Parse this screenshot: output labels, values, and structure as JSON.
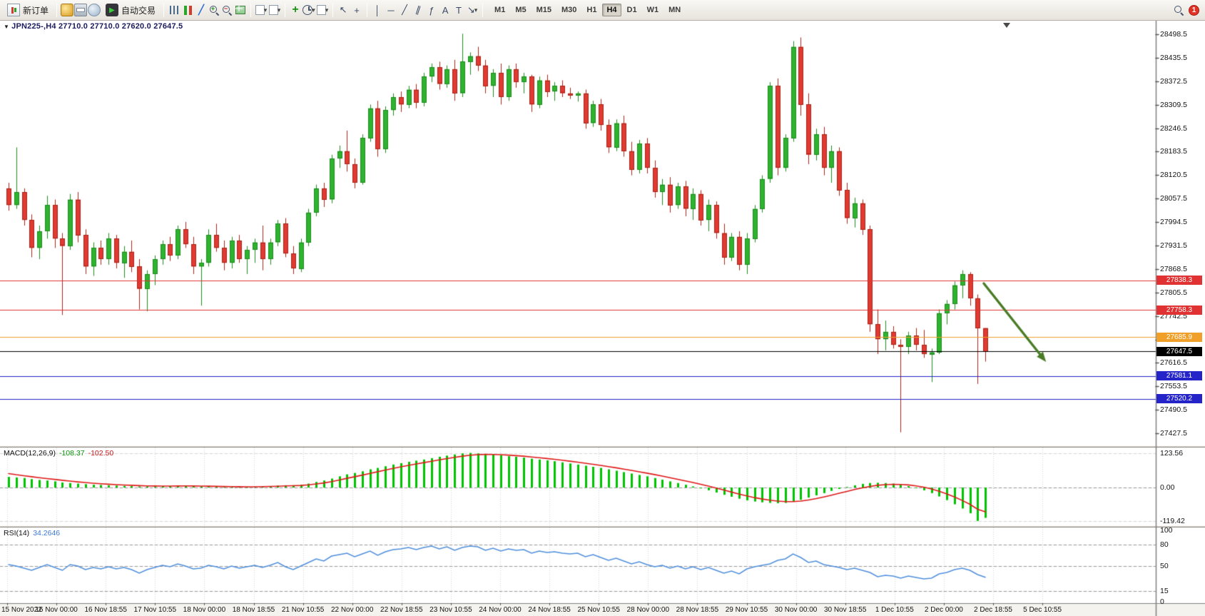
{
  "toolbar": {
    "new_order": "新订单",
    "auto_trading": "自动交易",
    "timeframes": [
      "M1",
      "M5",
      "M15",
      "M30",
      "H1",
      "H4",
      "D1",
      "W1",
      "MN"
    ],
    "active_timeframe": "H4",
    "notification_badge": "1",
    "icon_glyphs": {
      "play": "▶",
      "dropdown": "▾",
      "cursor": "↖",
      "crosshair": "+",
      "vline": "│",
      "hline": "─",
      "trendline": "╱",
      "channel": "∥",
      "fibonacci": "ƒ",
      "text": "A",
      "text_label": "T",
      "arrows": "↘",
      "indicators": "+",
      "linechart": "╱",
      "new_chart": "+"
    },
    "icons": [
      "new-order",
      "market-watch",
      "print",
      "data-window",
      "auto-trading",
      "bar-chart",
      "candlestick-chart",
      "line-chart",
      "zoom-in",
      "zoom-out",
      "tile-windows",
      "new-chart",
      "profiles",
      "indicators",
      "periods",
      "templates",
      "cursor",
      "crosshair",
      "vertical-line",
      "horizontal-line",
      "trendline",
      "channel",
      "fibonacci",
      "text",
      "text-label",
      "arrows",
      "search",
      "notifications"
    ]
  },
  "chart": {
    "symbol_marker": "▼",
    "symbol": "JPN225-,H4",
    "ohlc_line": "27710.0 27710.0 27620.0 27647.5",
    "price_axis_labels": [
      "28498.5",
      "28435.5",
      "28372.5",
      "28309.5",
      "28246.5",
      "28183.5",
      "28120.5",
      "28057.5",
      "27994.5",
      "27931.5",
      "27868.5",
      "27805.5",
      "27742.5",
      "27679.5",
      "27616.5",
      "27553.5",
      "27490.5",
      "27427.5"
    ],
    "time_axis_labels": [
      "15 Nov 2022",
      "16 Nov 00:00",
      "16 Nov 18:55",
      "17 Nov 10:55",
      "18 Nov 00:00",
      "18 Nov 18:55",
      "21 Nov 10:55",
      "22 Nov 00:00",
      "22 Nov 18:55",
      "23 Nov 10:55",
      "24 Nov 00:00",
      "24 Nov 18:55",
      "25 Nov 10:55",
      "28 Nov 00:00",
      "28 Nov 18:55",
      "29 Nov 10:55",
      "30 Nov 00:00",
      "30 Nov 18:55",
      "1 Dec 10:55",
      "2 Dec 00:00",
      "2 Dec 18:55",
      "5 Dec 10:55"
    ],
    "levels": [
      {
        "label": "27838.3",
        "price": 27838.3,
        "color": "#e03232",
        "text_color": "#ffffff"
      },
      {
        "label": "27758.3",
        "price": 27758.3,
        "color": "#e03232",
        "text_color": "#ffffff"
      },
      {
        "label": "27685.9",
        "price": 27685.9,
        "color": "#f0a028",
        "text_color": "#ffffff"
      },
      {
        "label": "27647.5",
        "price": 27647.5,
        "color": "#000000",
        "text_color": "#ffffff",
        "role": "bid-line"
      },
      {
        "label": "27581.1",
        "price": 27581.1,
        "color": "#2424c8",
        "text_color": "#ffffff"
      },
      {
        "label": "27520.2",
        "price": 27520.2,
        "color": "#2424c8",
        "text_color": "#ffffff"
      }
    ],
    "colors": {
      "up_fill": "#2eb32e",
      "up_border": "#1e8a1e",
      "down_fill": "#e03a32",
      "down_border": "#a82418",
      "macd_hist": "#00c400",
      "macd_signal": "#e01818",
      "rsi_line": "#4f8fdc",
      "grid": "#d6d6d6",
      "arrow": "#4a7c26"
    }
  },
  "chart_data": {
    "type": "candlestick",
    "symbol": "JPN225-",
    "timeframe": "H4",
    "last_quote": {
      "open": 27710.0,
      "high": 27710.0,
      "low": 27620.0,
      "close": 27647.5
    },
    "price_range": [
      27395,
      28535
    ],
    "candles": [
      [
        28085,
        28100,
        28025,
        28040
      ],
      [
        28040,
        28195,
        28030,
        28075
      ],
      [
        28075,
        28085,
        27985,
        28000
      ],
      [
        28000,
        28015,
        27900,
        27925
      ],
      [
        27925,
        27985,
        27895,
        27970
      ],
      [
        27970,
        28065,
        27950,
        28040
      ],
      [
        28040,
        28055,
        27925,
        27950
      ],
      [
        27950,
        27965,
        27745,
        27930
      ],
      [
        27930,
        28070,
        27920,
        28055
      ],
      [
        28055,
        28075,
        27940,
        27960
      ],
      [
        27960,
        27975,
        27855,
        27875
      ],
      [
        27875,
        27940,
        27850,
        27925
      ],
      [
        27925,
        27945,
        27880,
        27895
      ],
      [
        27895,
        27965,
        27880,
        27950
      ],
      [
        27950,
        27960,
        27870,
        27885
      ],
      [
        27885,
        27930,
        27845,
        27915
      ],
      [
        27915,
        27945,
        27860,
        27875
      ],
      [
        27875,
        27895,
        27760,
        27815
      ],
      [
        27815,
        27865,
        27755,
        27855
      ],
      [
        27855,
        27905,
        27825,
        27895
      ],
      [
        27895,
        27945,
        27880,
        27935
      ],
      [
        27935,
        27955,
        27890,
        27905
      ],
      [
        27905,
        27985,
        27895,
        27975
      ],
      [
        27975,
        27995,
        27925,
        27935
      ],
      [
        27935,
        27955,
        27855,
        27875
      ],
      [
        27875,
        27895,
        27770,
        27885
      ],
      [
        27885,
        27975,
        27875,
        27960
      ],
      [
        27960,
        27990,
        27915,
        27925
      ],
      [
        27925,
        27945,
        27865,
        27885
      ],
      [
        27885,
        27955,
        27870,
        27945
      ],
      [
        27945,
        27960,
        27885,
        27895
      ],
      [
        27895,
        27930,
        27855,
        27920
      ],
      [
        27920,
        27950,
        27885,
        27940
      ],
      [
        27940,
        27985,
        27865,
        27895
      ],
      [
        27895,
        27950,
        27880,
        27940
      ],
      [
        27940,
        28000,
        27930,
        27990
      ],
      [
        27990,
        28005,
        27900,
        27910
      ],
      [
        27910,
        27930,
        27855,
        27870
      ],
      [
        27870,
        27950,
        27860,
        27940
      ],
      [
        27940,
        28030,
        27930,
        28020
      ],
      [
        28020,
        28095,
        28010,
        28085
      ],
      [
        28085,
        28100,
        28035,
        28055
      ],
      [
        28055,
        28175,
        28045,
        28165
      ],
      [
        28165,
        28200,
        28140,
        28185
      ],
      [
        28185,
        28240,
        28130,
        28150
      ],
      [
        28150,
        28165,
        28085,
        28100
      ],
      [
        28100,
        28230,
        28095,
        28220
      ],
      [
        28220,
        28310,
        28210,
        28300
      ],
      [
        28300,
        28320,
        28170,
        28190
      ],
      [
        28190,
        28305,
        28180,
        28295
      ],
      [
        28295,
        28340,
        28280,
        28330
      ],
      [
        28330,
        28345,
        28290,
        28310
      ],
      [
        28310,
        28360,
        28300,
        28350
      ],
      [
        28350,
        28365,
        28300,
        28315
      ],
      [
        28315,
        28395,
        28305,
        28385
      ],
      [
        28385,
        28420,
        28370,
        28410
      ],
      [
        28410,
        28425,
        28350,
        28365
      ],
      [
        28365,
        28415,
        28355,
        28405
      ],
      [
        28405,
        28430,
        28320,
        28340
      ],
      [
        28340,
        28500,
        28330,
        28425
      ],
      [
        28425,
        28450,
        28390,
        28440
      ],
      [
        28440,
        28465,
        28400,
        28415
      ],
      [
        28415,
        28430,
        28340,
        28360
      ],
      [
        28360,
        28405,
        28330,
        28395
      ],
      [
        28395,
        28420,
        28310,
        28330
      ],
      [
        28330,
        28415,
        28320,
        28405
      ],
      [
        28405,
        28420,
        28355,
        28370
      ],
      [
        28370,
        28395,
        28340,
        28385
      ],
      [
        28385,
        28390,
        28290,
        28310
      ],
      [
        28310,
        28385,
        28300,
        28375
      ],
      [
        28375,
        28390,
        28330,
        28345
      ],
      [
        28345,
        28370,
        28320,
        28360
      ],
      [
        28360,
        28375,
        28330,
        28340
      ],
      [
        28340,
        28355,
        28325,
        28335
      ],
      [
        28335,
        28345,
        28318,
        28340
      ],
      [
        28340,
        28350,
        28245,
        28260
      ],
      [
        28260,
        28320,
        28250,
        28310
      ],
      [
        28310,
        28325,
        28240,
        28255
      ],
      [
        28255,
        28270,
        28180,
        28195
      ],
      [
        28195,
        28270,
        28185,
        28260
      ],
      [
        28260,
        28280,
        28170,
        28185
      ],
      [
        28185,
        28210,
        28120,
        28135
      ],
      [
        28135,
        28215,
        28125,
        28205
      ],
      [
        28205,
        28220,
        28125,
        28140
      ],
      [
        28140,
        28160,
        28060,
        28075
      ],
      [
        28075,
        28110,
        28040,
        28095
      ],
      [
        28095,
        28115,
        28020,
        28040
      ],
      [
        28040,
        28100,
        28030,
        28090
      ],
      [
        28090,
        28105,
        28010,
        28030
      ],
      [
        28030,
        28085,
        28000,
        28070
      ],
      [
        28070,
        28080,
        27985,
        28000
      ],
      [
        28000,
        28055,
        27970,
        28040
      ],
      [
        28040,
        28050,
        27950,
        27965
      ],
      [
        27965,
        27990,
        27880,
        27900
      ],
      [
        27900,
        27965,
        27890,
        27955
      ],
      [
        27955,
        27970,
        27865,
        27880
      ],
      [
        27880,
        27965,
        27855,
        27950
      ],
      [
        27950,
        28040,
        27940,
        28030
      ],
      [
        28030,
        28120,
        28020,
        28110
      ],
      [
        28110,
        28370,
        28100,
        28360
      ],
      [
        28360,
        28380,
        28120,
        28140
      ],
      [
        28140,
        28230,
        28130,
        28220
      ],
      [
        28220,
        28480,
        28210,
        28465
      ],
      [
        28465,
        28490,
        28280,
        28310
      ],
      [
        28310,
        28340,
        28150,
        28175
      ],
      [
        28175,
        28245,
        28160,
        28230
      ],
      [
        28230,
        28250,
        28120,
        28140
      ],
      [
        28140,
        28200,
        28100,
        28185
      ],
      [
        28185,
        28195,
        28065,
        28080
      ],
      [
        28080,
        28100,
        27990,
        28005
      ],
      [
        28005,
        28060,
        27980,
        28045
      ],
      [
        28045,
        28055,
        27960,
        27975
      ],
      [
        27975,
        27985,
        27700,
        27720
      ],
      [
        27720,
        27760,
        27640,
        27680
      ],
      [
        27680,
        27730,
        27650,
        27700
      ],
      [
        27700,
        27715,
        27655,
        27665
      ],
      [
        27665,
        27680,
        27430,
        27660
      ],
      [
        27660,
        27700,
        27640,
        27690
      ],
      [
        27690,
        27710,
        27650,
        27665
      ],
      [
        27665,
        27705,
        27630,
        27640
      ],
      [
        27640,
        27655,
        27565,
        27645
      ],
      [
        27645,
        27760,
        27640,
        27750
      ],
      [
        27750,
        27785,
        27720,
        27775
      ],
      [
        27775,
        27835,
        27760,
        27825
      ],
      [
        27825,
        27865,
        27790,
        27855
      ],
      [
        27855,
        27860,
        27770,
        27790
      ],
      [
        27790,
        27800,
        27560,
        27710
      ],
      [
        27710,
        27710,
        27620,
        27647.5
      ]
    ],
    "indicators": {
      "macd": {
        "name": "MACD(12,26,9)",
        "value_main": "-108.37",
        "value_signal": "-102.50",
        "scale_labels": [
          "123.56",
          "0.00",
          "-119.42"
        ],
        "scale_values": [
          123.56,
          0,
          -119.42
        ],
        "histogram": [
          38,
          36,
          34,
          30,
          27,
          25,
          22,
          18,
          16,
          14,
          12,
          10,
          9,
          8,
          7,
          6,
          5,
          4,
          4,
          4,
          5,
          5,
          6,
          6,
          5,
          4,
          4,
          3,
          2,
          2,
          2,
          2,
          3,
          4,
          5,
          7,
          8,
          8,
          10,
          14,
          20,
          25,
          32,
          40,
          47,
          52,
          58,
          65,
          70,
          76,
          82,
          87,
          92,
          96,
          100,
          105,
          110,
          114,
          118,
          122,
          123.56,
          122,
          120,
          118,
          115,
          112,
          110,
          107,
          103,
          100,
          97,
          94,
          90,
          86,
          82,
          78,
          74,
          70,
          65,
          60,
          55,
          50,
          45,
          40,
          34,
          28,
          22,
          16,
          10,
          4,
          -3,
          -10,
          -18,
          -26,
          -33,
          -40,
          -46,
          -50,
          -53,
          -55,
          -56,
          -55,
          -50,
          -44,
          -36,
          -28,
          -20,
          -12,
          -5,
          2,
          8,
          13,
          16,
          17,
          16,
          14,
          10,
          5,
          -2,
          -10,
          -20,
          -32,
          -45,
          -60,
          -75,
          -92,
          -119.42,
          -108.37
        ]
      },
      "rsi": {
        "name": "RSI(14)",
        "value": "34.2646",
        "scale_labels": [
          "100",
          "80",
          "50",
          "15",
          "0"
        ],
        "scale_values": [
          100,
          80,
          50,
          15,
          0
        ],
        "levels": [
          80,
          50,
          15
        ],
        "values": [
          52,
          50,
          47,
          44,
          48,
          52,
          48,
          44,
          52,
          50,
          45,
          48,
          46,
          49,
          46,
          48,
          45,
          40,
          45,
          48,
          51,
          49,
          53,
          50,
          46,
          47,
          51,
          49,
          46,
          50,
          47,
          49,
          51,
          48,
          51,
          55,
          49,
          45,
          50,
          55,
          60,
          57,
          64,
          66,
          68,
          63,
          67,
          71,
          65,
          70,
          73,
          74,
          76,
          73,
          76,
          78,
          74,
          77,
          72,
          76,
          78,
          77,
          72,
          75,
          71,
          74,
          72,
          73,
          68,
          71,
          69,
          70,
          68,
          67,
          68,
          63,
          66,
          62,
          58,
          61,
          57,
          53,
          56,
          52,
          49,
          51,
          47,
          50,
          46,
          49,
          45,
          48,
          44,
          40,
          43,
          39,
          46,
          49,
          51,
          53,
          58,
          60,
          67,
          62,
          55,
          57,
          52,
          50,
          48,
          45,
          47,
          44,
          41,
          35,
          37,
          36,
          33,
          36,
          34,
          32,
          33,
          39,
          41,
          45,
          47,
          44,
          38,
          34.26
        ]
      }
    },
    "annotations": {
      "trend_arrow": {
        "bar_from": 126.8,
        "price_from": 27830,
        "bar_to": 134.9,
        "price_to": 27619,
        "color": "#4a7c26"
      }
    }
  }
}
